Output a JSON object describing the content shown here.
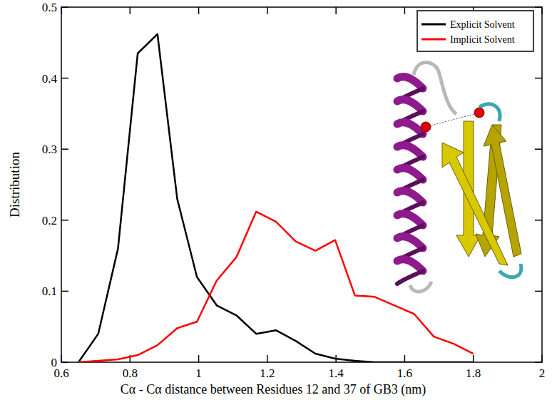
{
  "chart_data": {
    "type": "line",
    "x_label": "Cα -  Cα distance between Residues 12  and 37  of GB3 (nm)",
    "y_label": "Distribution",
    "x": [
      0.65,
      0.7075,
      0.765,
      0.8225,
      0.88,
      0.9375,
      0.995,
      1.0525,
      1.11,
      1.1675,
      1.225,
      1.2825,
      1.34,
      1.3975,
      1.455,
      1.5125,
      1.57,
      1.6275,
      1.685,
      1.7425,
      1.8
    ],
    "series": [
      {
        "name": "Explicit Solvent",
        "color": "#000000",
        "values": [
          0,
          0.04,
          0.16,
          0.435,
          0.462,
          0.23,
          0.12,
          0.08,
          0.066,
          0.04,
          0.045,
          0.03,
          0.012,
          0.005,
          0.002,
          0,
          0,
          0,
          0,
          0,
          0
        ]
      },
      {
        "name": "Implicit Solvent",
        "color": "#ff0000",
        "values": [
          0,
          0.002,
          0.004,
          0.01,
          0.024,
          0.048,
          0.057,
          0.115,
          0.148,
          0.212,
          0.198,
          0.17,
          0.157,
          0.172,
          0.094,
          0.092,
          0.08,
          0.068,
          0.036,
          0.026,
          0.012
        ]
      }
    ],
    "xlim": [
      0.6,
      2
    ],
    "ylim": [
      0,
      0.5
    ],
    "xticks": [
      0.6,
      0.8,
      1,
      1.2,
      1.4,
      1.6,
      1.8,
      2
    ],
    "yticks": [
      0,
      0.1,
      0.2,
      0.3,
      0.4,
      0.5
    ],
    "legend": "upper right",
    "grid": false
  }
}
